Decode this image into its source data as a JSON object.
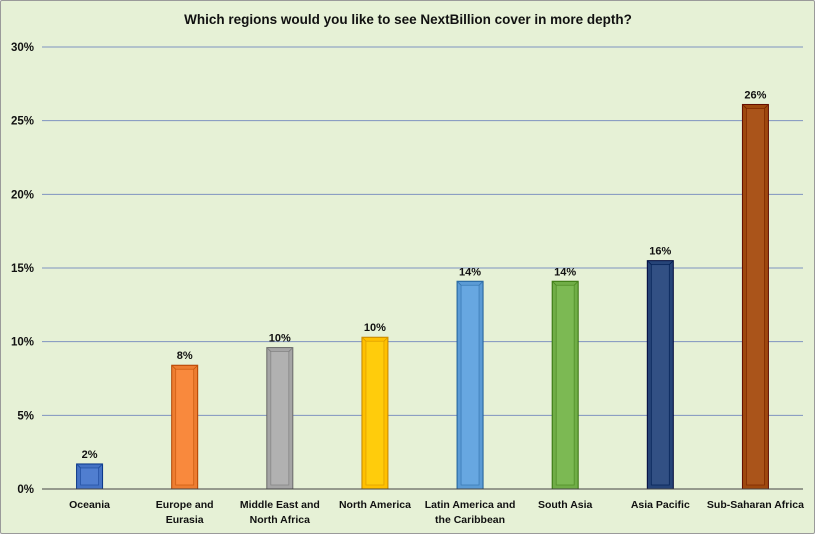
{
  "chart_data": {
    "type": "bar",
    "title": "Which regions would you like to see NextBillion cover in more depth?",
    "xlabel": "",
    "ylabel": "",
    "ylim": [
      0,
      30
    ],
    "yticks": [
      0,
      5,
      10,
      15,
      20,
      25,
      30
    ],
    "ytick_labels": [
      "0%",
      "5%",
      "10%",
      "15%",
      "20%",
      "25%",
      "30%"
    ],
    "grid": true,
    "categories": [
      [
        "Oceania"
      ],
      [
        "Europe and",
        "Eurasia"
      ],
      [
        "Middle East and",
        "North Africa"
      ],
      [
        "North America"
      ],
      [
        "Latin America and",
        "the Caribbean"
      ],
      [
        "South Asia"
      ],
      [
        "Asia Pacific"
      ],
      [
        "Sub-Saharan Africa"
      ]
    ],
    "values": [
      1.7,
      8.4,
      9.6,
      10.3,
      14.1,
      14.1,
      15.5,
      26.1
    ],
    "data_labels": [
      "2%",
      "8%",
      "10%",
      "10%",
      "14%",
      "14%",
      "16%",
      "26%"
    ],
    "colors": [
      "#4472c4",
      "#ed7d31",
      "#a5a5a5",
      "#ffc000",
      "#5b9bd5",
      "#70ad47",
      "#264478",
      "#9e480e"
    ]
  }
}
